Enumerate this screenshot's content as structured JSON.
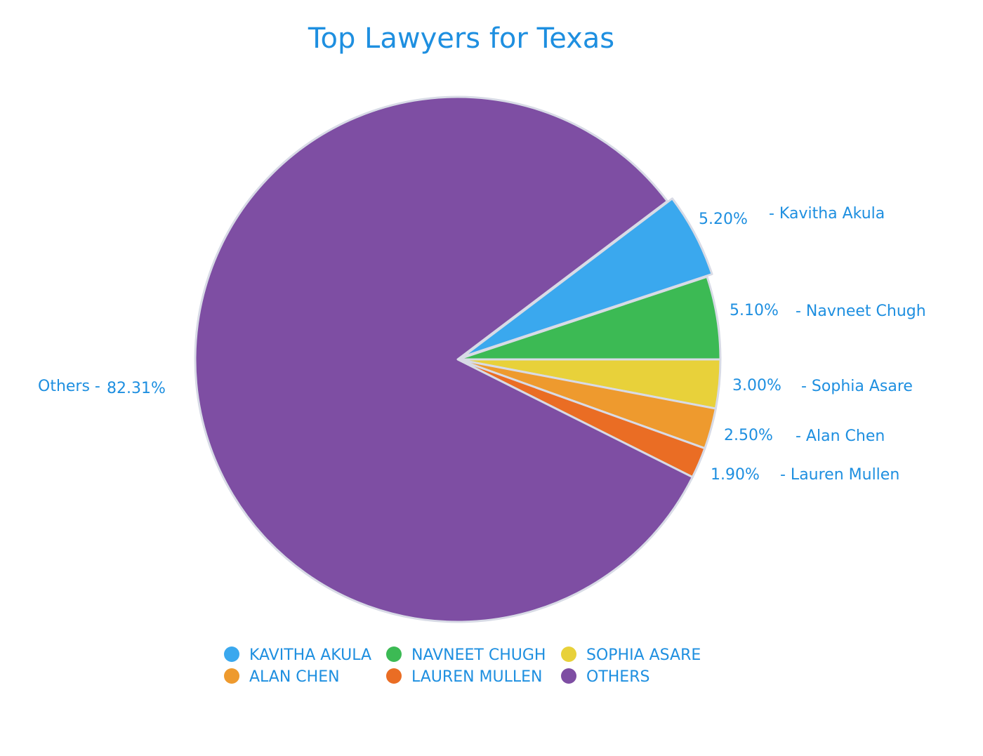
{
  "chart_data": {
    "type": "pie",
    "title": "Top Lawyers for Texas",
    "slices": [
      {
        "name": "Kavitha Akula",
        "legend": "KAVITHA AKULA",
        "value": 5.2,
        "value_label": "5.20%",
        "name_label": "- Kavitha Akula",
        "color": "#3aa8ee",
        "exploded": true
      },
      {
        "name": "Navneet Chugh",
        "legend": "NAVNEET CHUGH",
        "value": 5.1,
        "value_label": "5.10%",
        "name_label": "- Navneet Chugh",
        "color": "#3cba54",
        "exploded": false
      },
      {
        "name": "Sophia Asare",
        "legend": "SOPHIA ASARE",
        "value": 3.0,
        "value_label": "3.00%",
        "name_label": "- Sophia Asare",
        "color": "#e8d13a",
        "exploded": false
      },
      {
        "name": "Alan Chen",
        "legend": "ALAN CHEN",
        "value": 2.5,
        "value_label": "2.50%",
        "name_label": "- Alan Chen",
        "color": "#ee9a2e",
        "exploded": false
      },
      {
        "name": "Lauren Mullen",
        "legend": "LAUREN MULLEN",
        "value": 1.9,
        "value_label": "1.90%",
        "name_label": "- Lauren Mullen",
        "color": "#ea6d24",
        "exploded": false
      },
      {
        "name": "Others",
        "legend": "OTHERS",
        "value": 82.31,
        "value_label": "82.31%",
        "name_label": "Others -",
        "color": "#7e4ea3",
        "exploded": false
      }
    ],
    "legend_placement": "bottom"
  }
}
